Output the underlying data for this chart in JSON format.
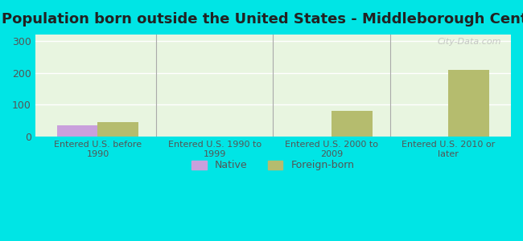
{
  "title": "Population born outside the United States - Middleborough Center",
  "categories": [
    "Entered U.S. before\n1990",
    "Entered U.S. 1990 to\n1999",
    "Entered U.S. 2000 to\n2009",
    "Entered U.S. 2010 or\nlater"
  ],
  "native_values": [
    35,
    0,
    0,
    0
  ],
  "foreign_born_values": [
    47,
    0,
    82,
    208
  ],
  "native_color": "#c9a0dc",
  "foreign_born_color": "#b5bc6e",
  "background_color": "#00e5e5",
  "plot_bg_color": "#e8f5e0",
  "ylim": [
    0,
    320
  ],
  "yticks": [
    0,
    100,
    200,
    300
  ],
  "bar_width": 0.35,
  "watermark": "City-Data.com",
  "legend_native": "Native",
  "legend_foreign": "Foreign-born",
  "title_fontsize": 13,
  "tick_color": "#555555",
  "grid_color": "#ffffff"
}
